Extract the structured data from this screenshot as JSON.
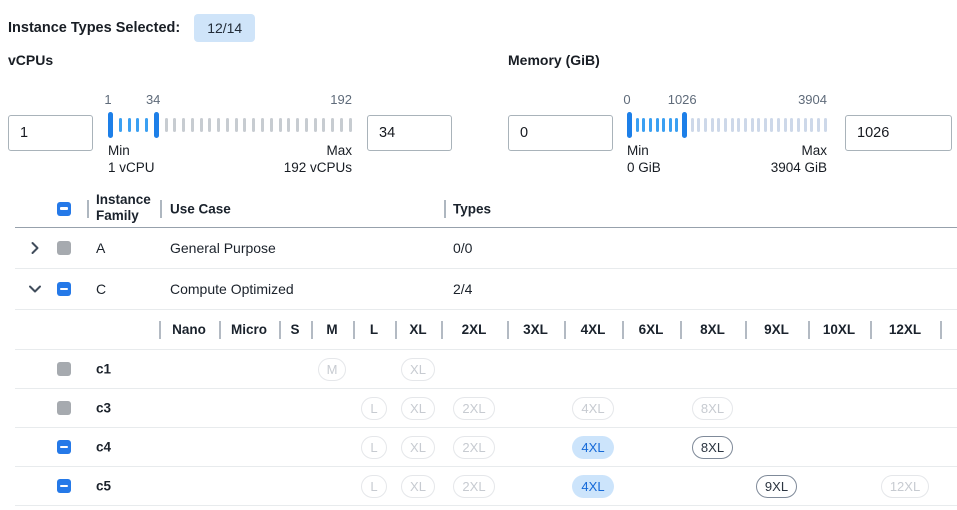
{
  "header": {
    "label": "Instance Types Selected:",
    "badge": "12/14"
  },
  "filters": {
    "vcpus": {
      "title": "vCPUs",
      "min_value": "1",
      "max_value": "34",
      "scale": [
        "1",
        "34",
        "192"
      ],
      "min_label": "Min",
      "min_detail": "1 vCPU",
      "max_label": "Max",
      "max_detail": "192 vCPUs",
      "slider": {
        "ticks": 28,
        "handle1": 0,
        "handle2": 5
      }
    },
    "memory": {
      "title": "Memory (GiB)",
      "min_value": "0",
      "max_value": "1026",
      "scale": [
        "0",
        "1026",
        "3904"
      ],
      "min_label": "Min",
      "min_detail": "0 GiB",
      "max_label": "Max",
      "max_detail": "3904 GiB",
      "slider": {
        "ticks": 30,
        "handle1": 0,
        "handle2": 8
      }
    }
  },
  "table": {
    "headers": {
      "family": "Instance Family",
      "use_case": "Use Case",
      "types": "Types"
    },
    "size_columns": [
      "Nano",
      "Micro",
      "S",
      "M",
      "L",
      "XL",
      "2XL",
      "3XL",
      "4XL",
      "6XL",
      "8XL",
      "9XL",
      "10XL",
      "12XL"
    ],
    "families": [
      {
        "name": "A",
        "use_case": "General Purpose",
        "types": "0/0",
        "checkbox": "disabled",
        "expanded": false
      },
      {
        "name": "C",
        "use_case": "Compute Optimized",
        "types": "2/4",
        "checkbox": "indeterminate",
        "expanded": true
      }
    ],
    "instances": [
      {
        "name": "c1",
        "checkbox": "disabled",
        "sizes": {
          "M": "disabled",
          "XL": "disabled"
        }
      },
      {
        "name": "c3",
        "checkbox": "disabled",
        "sizes": {
          "L": "disabled",
          "XL": "disabled",
          "2XL": "disabled",
          "4XL": "disabled",
          "8XL": "disabled"
        }
      },
      {
        "name": "c4",
        "checkbox": "indeterminate",
        "sizes": {
          "L": "disabled",
          "XL": "disabled",
          "2XL": "disabled",
          "4XL": "selected",
          "8XL": "available"
        }
      },
      {
        "name": "c5",
        "checkbox": "indeterminate",
        "sizes": {
          "L": "disabled",
          "XL": "disabled",
          "2XL": "disabled",
          "4XL": "selected",
          "9XL": "available",
          "12XL": "disabled"
        }
      }
    ]
  },
  "colors": {
    "accent_blue": "#2579e8",
    "handle_blue": "#1d7fe8",
    "tick_active": "#3ba0f2",
    "tick_inactive": "#c7ccd1",
    "tick_inactive_mem": "#cdd8e9",
    "badge_bg": "#cfe4f9",
    "pill_selected_bg": "#cce4fb",
    "pill_selected_text": "#1569d8",
    "pill_available_border": "#7f8a99",
    "pill_disabled_border": "#e5e7ea",
    "pill_disabled_text": "#c7cbd1",
    "checkbox_disabled": "#a6aaaf"
  }
}
